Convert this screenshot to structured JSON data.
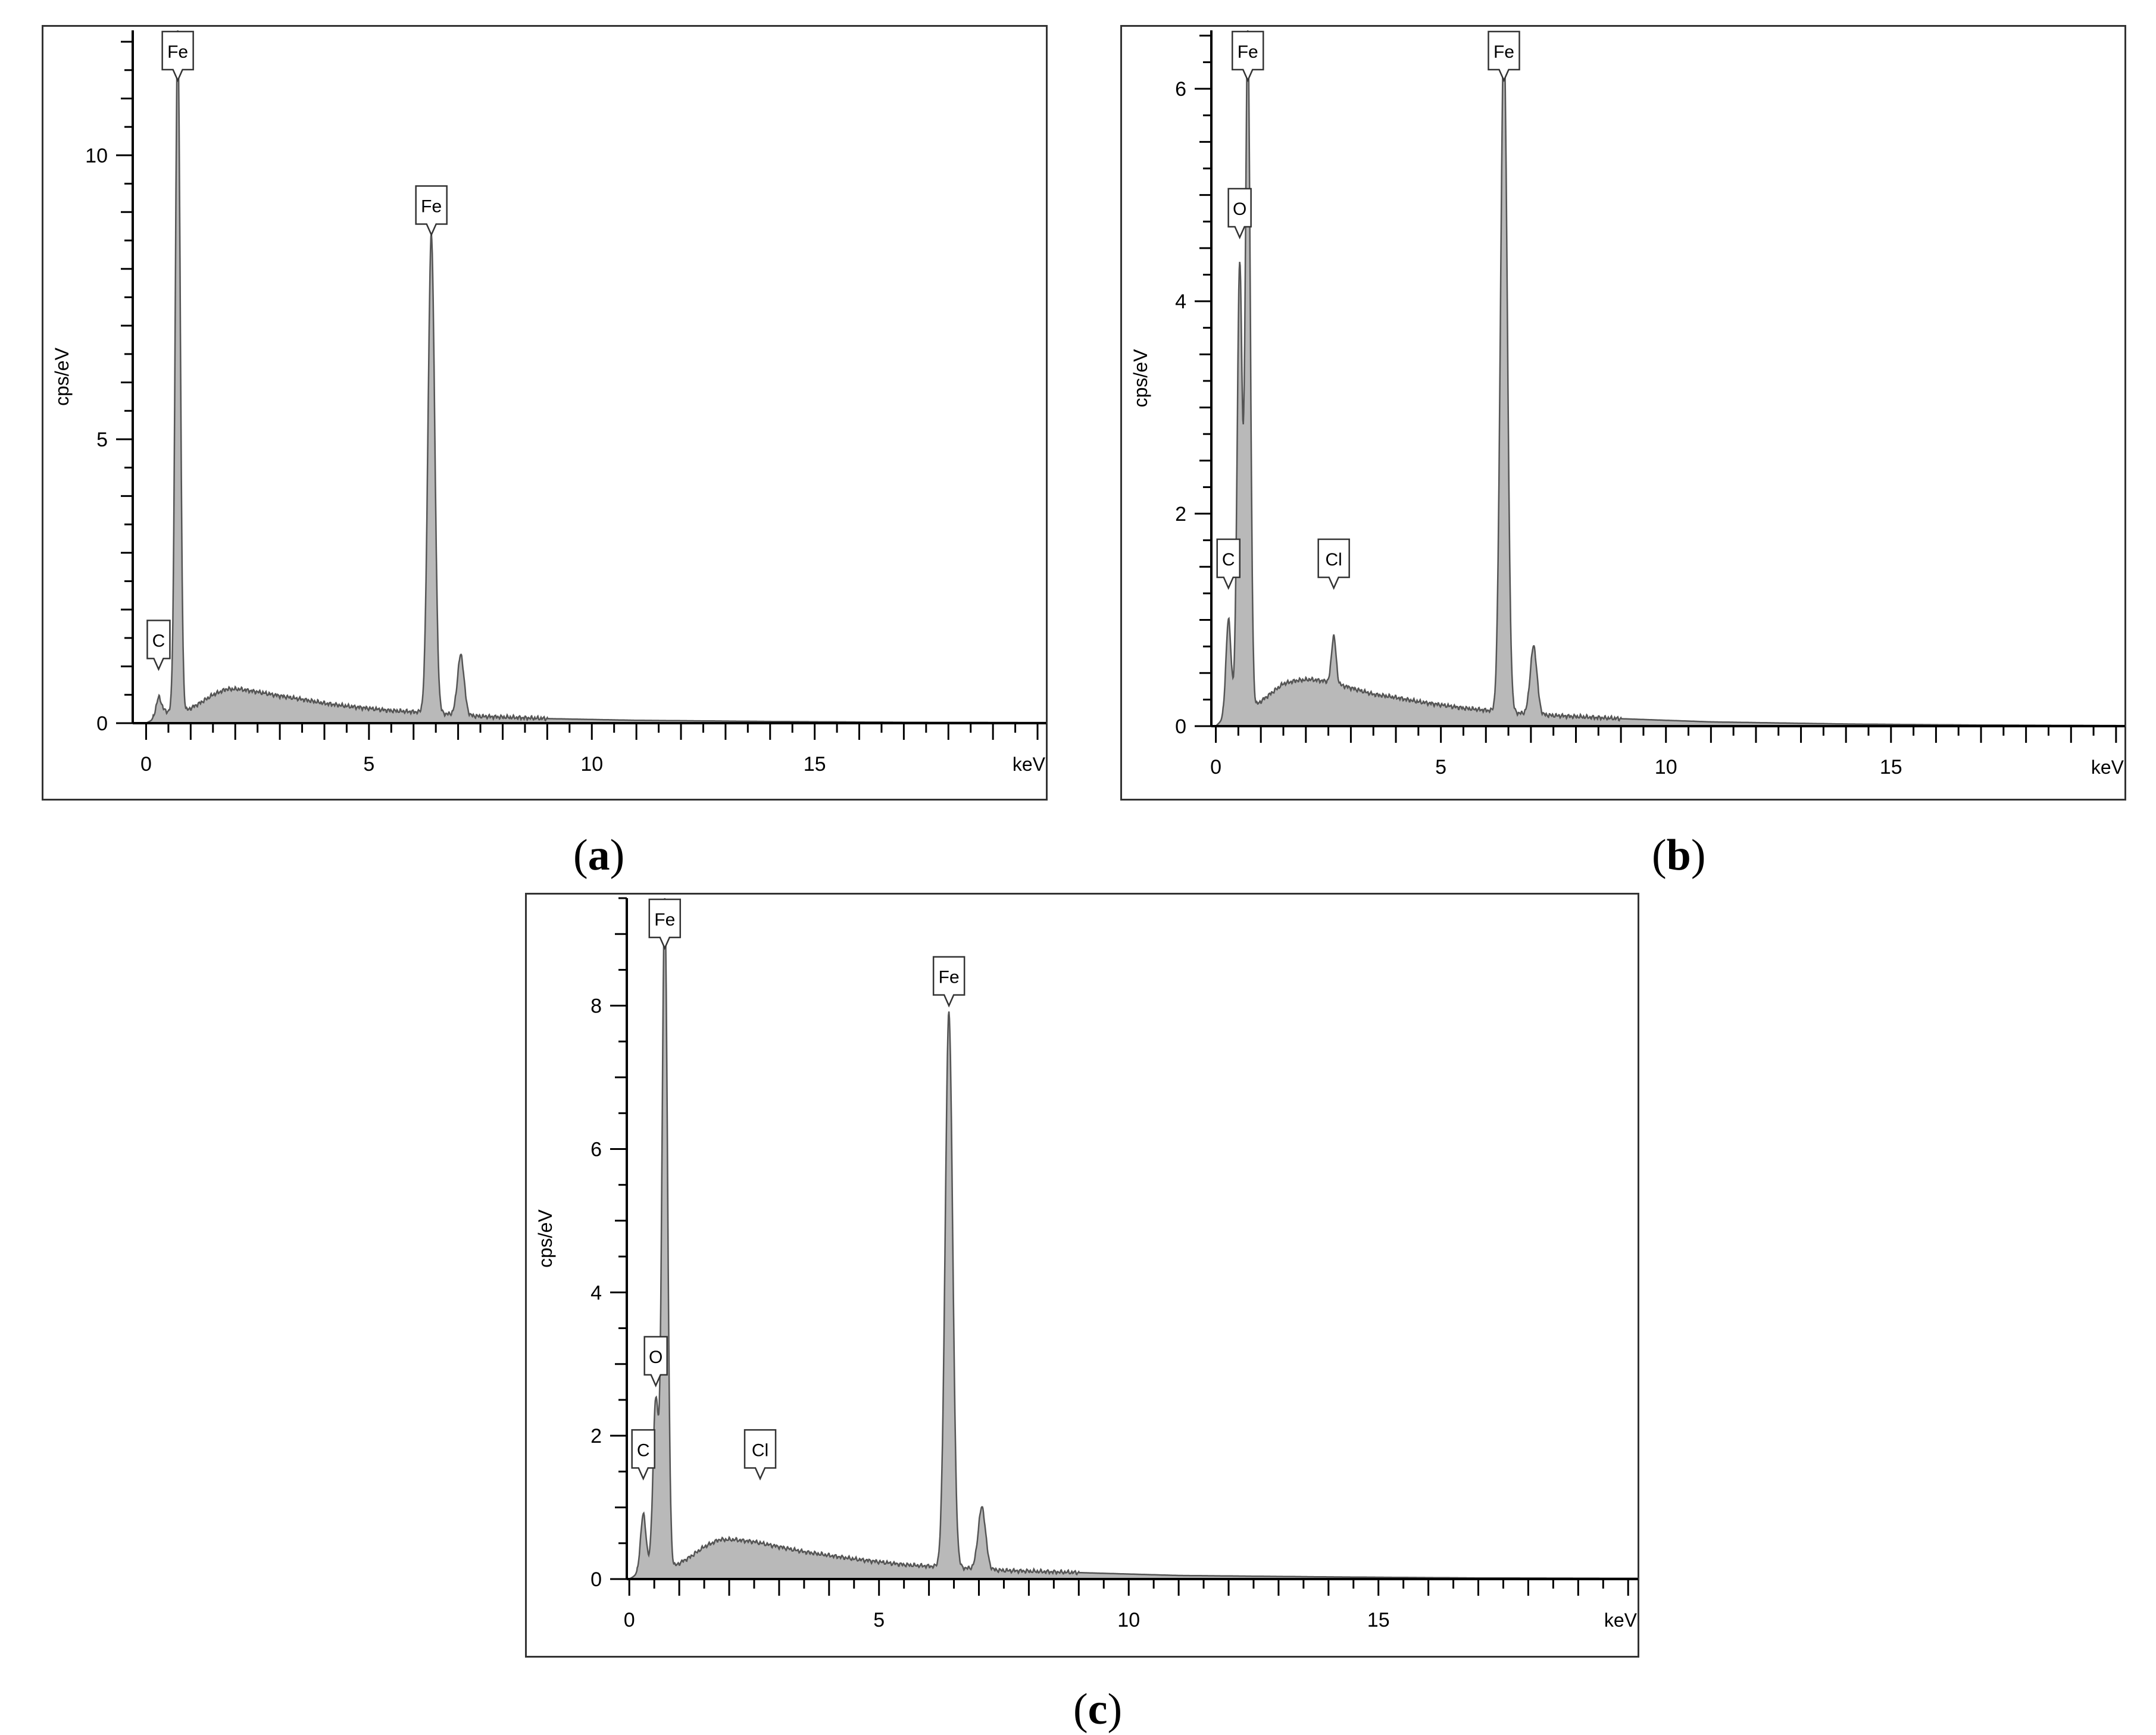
{
  "colors": {
    "fill": "#b9b9b9",
    "stroke": "#555555",
    "axis": "#000000"
  },
  "chart_data": [
    {
      "type": "area",
      "panel_label": "a",
      "xlabel": "keV",
      "ylabel": "cps/eV",
      "xlim": [
        -0.3,
        20.2
      ],
      "ylim": [
        0,
        12.2
      ],
      "xticks": [
        "0",
        "5",
        "10",
        "15"
      ],
      "yticks": [
        "0",
        "5",
        "10"
      ],
      "x_minor_step": 0.5,
      "y_minor_step": 0.5,
      "grid": false,
      "peaks": [
        {
          "element": "C",
          "energy": 0.28,
          "height": 0.45,
          "label_y": 0.95
        },
        {
          "element": "Fe",
          "energy": 0.71,
          "height": 12.2,
          "label_y": 12.2
        },
        {
          "element": "Fe",
          "energy": 6.4,
          "height": 8.6,
          "label_y": 8.6
        },
        {
          "element": "",
          "energy": 7.06,
          "height": 1.2
        }
      ],
      "background": [
        [
          0.0,
          0.0
        ],
        [
          0.12,
          0.05
        ],
        [
          0.3,
          0.25
        ],
        [
          0.5,
          0.2
        ],
        [
          0.9,
          0.22
        ],
        [
          1.2,
          0.35
        ],
        [
          1.5,
          0.5
        ],
        [
          1.8,
          0.6
        ],
        [
          2.1,
          0.6
        ],
        [
          2.5,
          0.55
        ],
        [
          3.0,
          0.48
        ],
        [
          3.5,
          0.42
        ],
        [
          4.0,
          0.35
        ],
        [
          4.5,
          0.3
        ],
        [
          5.0,
          0.26
        ],
        [
          5.5,
          0.22
        ],
        [
          6.0,
          0.2
        ],
        [
          6.8,
          0.16
        ],
        [
          7.5,
          0.12
        ],
        [
          9.0,
          0.08
        ],
        [
          11.0,
          0.05
        ],
        [
          14.0,
          0.03
        ],
        [
          17.0,
          0.015
        ],
        [
          20.2,
          0.01
        ]
      ]
    },
    {
      "type": "area",
      "panel_label": "b",
      "xlabel": "keV",
      "ylabel": "cps/eV",
      "xlim": [
        -0.1,
        20.2
      ],
      "ylim": [
        0,
        6.55
      ],
      "xticks": [
        "0",
        "5",
        "10",
        "15"
      ],
      "yticks": [
        "0",
        "2",
        "4",
        "6"
      ],
      "x_minor_step": 0.5,
      "y_minor_step": 0.25,
      "grid": false,
      "peaks": [
        {
          "element": "C",
          "energy": 0.28,
          "height": 1.0,
          "label_y": 1.3
        },
        {
          "element": "O",
          "energy": 0.53,
          "height": 4.35,
          "label_y": 4.6
        },
        {
          "element": "Fe",
          "energy": 0.71,
          "height": 6.55,
          "label_y": 6.55
        },
        {
          "element": "Cl",
          "energy": 2.62,
          "height": 0.85,
          "label_y": 1.3
        },
        {
          "element": "",
          "energy": 5.9,
          "height": 0.13
        },
        {
          "element": "Fe",
          "energy": 6.4,
          "height": 6.5,
          "label_y": 6.55
        },
        {
          "element": "",
          "energy": 7.06,
          "height": 0.75
        }
      ],
      "background": [
        [
          0.0,
          0.0
        ],
        [
          0.12,
          0.05
        ],
        [
          0.3,
          0.2
        ],
        [
          0.5,
          0.2
        ],
        [
          0.9,
          0.2
        ],
        [
          1.2,
          0.3
        ],
        [
          1.5,
          0.4
        ],
        [
          1.8,
          0.43
        ],
        [
          2.1,
          0.44
        ],
        [
          2.5,
          0.42
        ],
        [
          3.0,
          0.36
        ],
        [
          3.5,
          0.3
        ],
        [
          4.0,
          0.27
        ],
        [
          4.5,
          0.23
        ],
        [
          5.0,
          0.2
        ],
        [
          5.5,
          0.17
        ],
        [
          6.0,
          0.15
        ],
        [
          6.8,
          0.12
        ],
        [
          7.5,
          0.1
        ],
        [
          9.0,
          0.07
        ],
        [
          11.0,
          0.04
        ],
        [
          14.0,
          0.02
        ],
        [
          17.0,
          0.01
        ],
        [
          20.2,
          0.005
        ]
      ]
    },
    {
      "type": "area",
      "panel_label": "c",
      "xlabel": "keV",
      "ylabel": "cps/eV",
      "xlim": [
        -0.05,
        20.2
      ],
      "ylim": [
        0,
        9.5
      ],
      "xticks": [
        "0",
        "5",
        "10",
        "15"
      ],
      "yticks": [
        "0",
        "2",
        "4",
        "6",
        "8"
      ],
      "x_minor_step": 0.5,
      "y_minor_step": 0.5,
      "grid": false,
      "peaks": [
        {
          "element": "C",
          "energy": 0.28,
          "height": 0.9,
          "label_y": 1.4
        },
        {
          "element": "O",
          "energy": 0.53,
          "height": 2.5,
          "label_y": 2.7
        },
        {
          "element": "Fe",
          "energy": 0.71,
          "height": 9.5,
          "label_y": 9.5
        },
        {
          "element": "Cl",
          "energy": 2.62,
          "height": 0.5,
          "label_y": 1.4
        },
        {
          "element": "",
          "energy": 5.9,
          "height": 0.1
        },
        {
          "element": "Fe",
          "energy": 6.4,
          "height": 7.9,
          "label_y": 8.0
        },
        {
          "element": "",
          "energy": 7.06,
          "height": 1.0
        }
      ],
      "background": [
        [
          0.0,
          0.0
        ],
        [
          0.12,
          0.05
        ],
        [
          0.3,
          0.15
        ],
        [
          0.5,
          0.15
        ],
        [
          0.9,
          0.18
        ],
        [
          1.2,
          0.3
        ],
        [
          1.5,
          0.45
        ],
        [
          1.8,
          0.55
        ],
        [
          2.1,
          0.55
        ],
        [
          2.5,
          0.52
        ],
        [
          3.0,
          0.45
        ],
        [
          3.5,
          0.38
        ],
        [
          4.0,
          0.33
        ],
        [
          4.5,
          0.28
        ],
        [
          5.0,
          0.24
        ],
        [
          5.5,
          0.2
        ],
        [
          6.0,
          0.18
        ],
        [
          6.8,
          0.15
        ],
        [
          7.5,
          0.12
        ],
        [
          9.0,
          0.09
        ],
        [
          11.0,
          0.05
        ],
        [
          14.0,
          0.03
        ],
        [
          17.0,
          0.015
        ],
        [
          20.2,
          0.01
        ]
      ]
    }
  ],
  "captions": {
    "a_open": "(",
    "a_letter": "a",
    "a_close": ")",
    "b_open": "(",
    "b_letter": "b",
    "b_close": ")",
    "c_open": "(",
    "c_letter": "c",
    "c_close": ")"
  }
}
